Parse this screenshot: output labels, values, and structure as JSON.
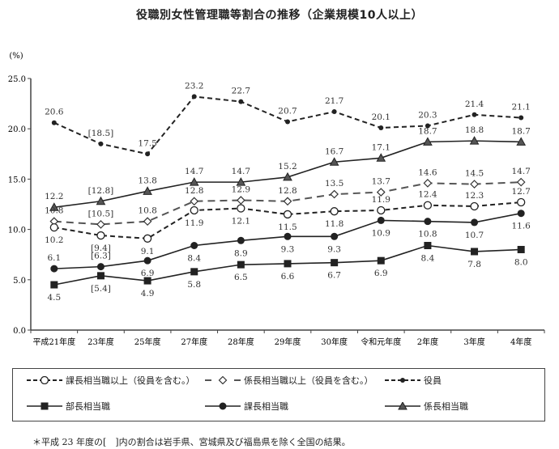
{
  "chart_data": {
    "type": "line",
    "title": "役職別女性管理職等割合の推移（企業規模10人以上）",
    "ylabel": "(%)",
    "xlabel": "",
    "ylim": [
      0,
      25
    ],
    "yticks": [
      "0.0",
      "5.0",
      "10.0",
      "15.0",
      "20.0",
      "25.0"
    ],
    "categories": [
      "平成21年度",
      "23年度",
      "25年度",
      "27年度",
      "28年度",
      "29年度",
      "30年度",
      "令和元年度",
      "2年度",
      "3年度",
      "4年度"
    ],
    "grid": false,
    "legend_position": "bottom",
    "series": [
      {
        "key": "kacho_ijo",
        "name": "課長相当職以上（役員を含む。）",
        "style": "dashed",
        "marker": "open-circle",
        "values": [
          10.2,
          9.4,
          9.1,
          11.9,
          12.1,
          11.5,
          11.8,
          11.9,
          12.4,
          12.3,
          12.7
        ],
        "labels": [
          "10.2",
          "[9.4]",
          "9.1",
          "11.9",
          "12.1",
          "11.5",
          "11.8",
          "11.9",
          "12.4",
          "12.3",
          "12.7"
        ]
      },
      {
        "key": "kakari_ijo",
        "name": "係長相当職以上（役員を含む。）",
        "style": "longdash",
        "marker": "open-diamond",
        "values": [
          10.8,
          10.5,
          10.8,
          12.8,
          12.9,
          12.8,
          13.5,
          13.7,
          14.6,
          14.5,
          14.7
        ],
        "labels": [
          "10.8",
          "[10.5]",
          "10.8",
          "12.8",
          "12.9",
          "12.8",
          "13.5",
          "13.7",
          "14.6",
          "14.5",
          "14.7"
        ]
      },
      {
        "key": "yakuin",
        "name": "役員",
        "style": "dashed",
        "marker": "small-dot",
        "values": [
          20.6,
          18.5,
          17.5,
          23.2,
          22.7,
          20.7,
          21.7,
          20.1,
          20.3,
          21.4,
          21.1
        ],
        "labels": [
          "20.6",
          "[18.5]",
          "17.5",
          "23.2",
          "22.7",
          "20.7",
          "21.7",
          "20.1",
          "20.3",
          "21.4",
          "21.1"
        ]
      },
      {
        "key": "bucho",
        "name": "部長相当職",
        "style": "solid",
        "marker": "square",
        "values": [
          4.5,
          5.4,
          4.9,
          5.8,
          6.5,
          6.6,
          6.7,
          6.9,
          8.4,
          7.8,
          8.0
        ],
        "labels": [
          "4.5",
          "[5.4]",
          "4.9",
          "5.8",
          "6.5",
          "6.6",
          "6.7",
          "6.9",
          "8.4",
          "7.8",
          "8.0"
        ]
      },
      {
        "key": "kacho",
        "name": "課長相当職",
        "style": "solid",
        "marker": "filled-circle",
        "values": [
          6.1,
          6.3,
          6.9,
          8.4,
          8.9,
          9.3,
          9.3,
          10.9,
          10.8,
          10.7,
          11.6
        ],
        "labels": [
          "6.1",
          "[6.3]",
          "6.9",
          "8.4",
          "8.9",
          "9.3",
          "9.3",
          "10.9",
          "10.8",
          "10.7",
          "11.6"
        ]
      },
      {
        "key": "kakari",
        "name": "係長相当職",
        "style": "solid",
        "marker": "triangle",
        "values": [
          12.2,
          12.8,
          13.8,
          14.7,
          14.7,
          15.2,
          16.7,
          17.1,
          18.7,
          18.8,
          18.7
        ],
        "labels": [
          "12.2",
          "[12.8]",
          "13.8",
          "14.7",
          "14.7",
          "15.2",
          "16.7",
          "17.1",
          "18.7",
          "18.8",
          "18.7"
        ]
      }
    ],
    "footnote": "＊平成 23 年度の[　]内の割合は岩手県、宮城県及び福島県を除く全国の結果。"
  }
}
